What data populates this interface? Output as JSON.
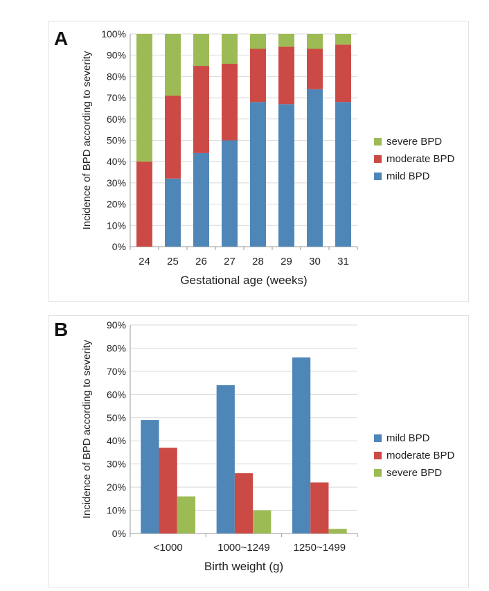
{
  "colors": {
    "mild": "#4f86b8",
    "moderate": "#cc4a45",
    "severe": "#9dbb55",
    "grid": "#d9d9d9",
    "axis": "#9a9a9a"
  },
  "chart_data": [
    {
      "panel": "A",
      "type": "bar",
      "stacked": true,
      "title": "",
      "xlabel": "Gestational age (weeks)",
      "ylabel": "Incidence of BPD according to severity",
      "categories": [
        "24",
        "25",
        "26",
        "27",
        "28",
        "29",
        "30",
        "31"
      ],
      "ylim": [
        0,
        100
      ],
      "yticks": [
        "0%",
        "10%",
        "20%",
        "30%",
        "40%",
        "50%",
        "60%",
        "70%",
        "80%",
        "90%",
        "100%"
      ],
      "series": [
        {
          "name": "mild BPD",
          "key": "mild",
          "values": [
            0,
            32,
            44,
            50,
            68,
            67,
            74,
            68
          ]
        },
        {
          "name": "moderate BPD",
          "key": "moderate",
          "values": [
            40,
            39,
            41,
            36,
            25,
            27,
            19,
            27
          ]
        },
        {
          "name": "severe BPD",
          "key": "severe",
          "values": [
            60,
            29,
            15,
            14,
            7,
            6,
            7,
            5
          ]
        }
      ],
      "legend": [
        "severe BPD",
        "moderate BPD",
        "mild BPD"
      ],
      "legend_keys": [
        "severe",
        "moderate",
        "mild"
      ],
      "legend_position": "right"
    },
    {
      "panel": "B",
      "type": "bar",
      "stacked": false,
      "title": "",
      "xlabel": "Birth weight (g)",
      "ylabel": "Incidence of BPD according to severity",
      "categories": [
        "<1000",
        "1000~1249",
        "1250~1499"
      ],
      "ylim": [
        0,
        90
      ],
      "yticks": [
        "0%",
        "10%",
        "20%",
        "30%",
        "40%",
        "50%",
        "60%",
        "70%",
        "80%",
        "90%"
      ],
      "series": [
        {
          "name": "mild BPD",
          "key": "mild",
          "values": [
            49,
            64,
            76
          ]
        },
        {
          "name": "moderate BPD",
          "key": "moderate",
          "values": [
            37,
            26,
            22
          ]
        },
        {
          "name": "severe BPD",
          "key": "severe",
          "values": [
            16,
            10,
            2
          ]
        }
      ],
      "legend": [
        "mild BPD",
        "moderate BPD",
        "severe BPD"
      ],
      "legend_keys": [
        "mild",
        "moderate",
        "severe"
      ],
      "legend_position": "right"
    }
  ],
  "panel_labels": {
    "a": "A",
    "b": "B"
  }
}
